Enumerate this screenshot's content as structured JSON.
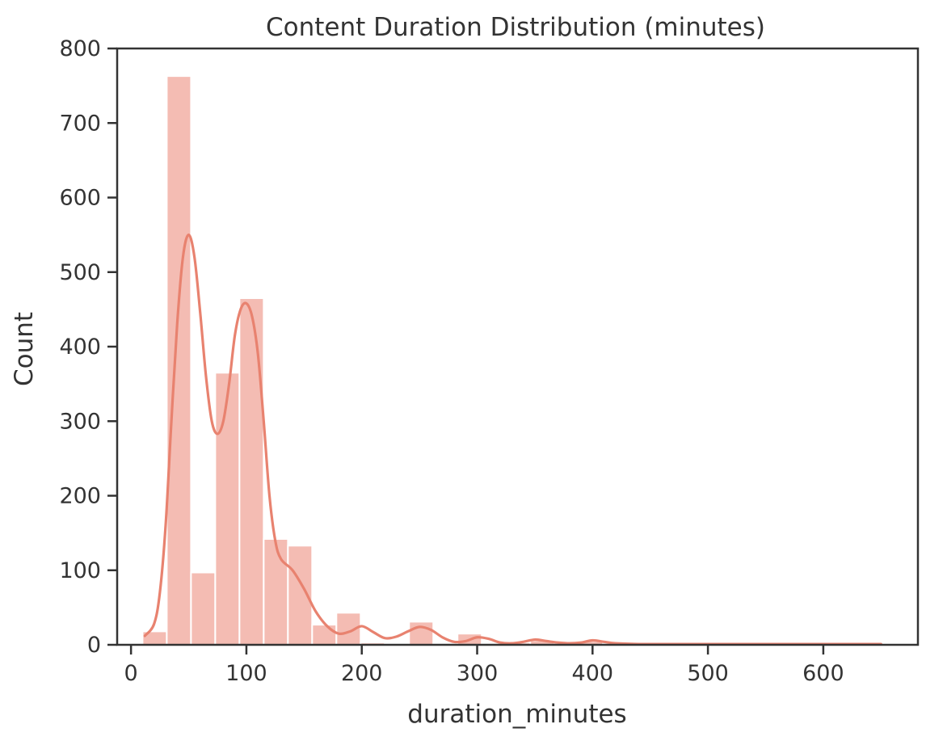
{
  "chart_data": {
    "type": "bar",
    "title": "Content Duration Distribution (minutes)",
    "xlabel": "duration_minutes",
    "ylabel": "Count",
    "xlim": [
      -12,
      682
    ],
    "ylim": [
      0,
      800
    ],
    "xticks": [
      0,
      100,
      200,
      300,
      400,
      500,
      600
    ],
    "yticks": [
      0,
      100,
      200,
      300,
      400,
      500,
      600,
      700,
      800
    ],
    "grid": false,
    "legend": "none",
    "bar_color": "#f4bcb3",
    "kde_color": "#e8826f",
    "bins": [
      {
        "x0": 10,
        "x1": 31,
        "count": 18
      },
      {
        "x0": 31,
        "x1": 52,
        "count": 763
      },
      {
        "x0": 52,
        "x1": 73,
        "count": 97
      },
      {
        "x0": 73,
        "x1": 94,
        "count": 365
      },
      {
        "x0": 94,
        "x1": 115,
        "count": 465
      },
      {
        "x0": 115,
        "x1": 136,
        "count": 142
      },
      {
        "x0": 136,
        "x1": 157,
        "count": 133
      },
      {
        "x0": 157,
        "x1": 178,
        "count": 27
      },
      {
        "x0": 178,
        "x1": 199,
        "count": 43
      },
      {
        "x0": 199,
        "x1": 220,
        "count": 3
      },
      {
        "x0": 220,
        "x1": 241,
        "count": 2
      },
      {
        "x0": 241,
        "x1": 262,
        "count": 31
      },
      {
        "x0": 262,
        "x1": 283,
        "count": 2
      },
      {
        "x0": 283,
        "x1": 304,
        "count": 15
      },
      {
        "x0": 304,
        "x1": 325,
        "count": 2
      },
      {
        "x0": 325,
        "x1": 346,
        "count": 3
      },
      {
        "x0": 346,
        "x1": 367,
        "count": 6
      },
      {
        "x0": 367,
        "x1": 388,
        "count": 2
      },
      {
        "x0": 388,
        "x1": 409,
        "count": 5
      },
      {
        "x0": 409,
        "x1": 430,
        "count": 1
      },
      {
        "x0": 430,
        "x1": 451,
        "count": 1
      },
      {
        "x0": 451,
        "x1": 472,
        "count": 1
      },
      {
        "x0": 472,
        "x1": 493,
        "count": 1
      },
      {
        "x0": 493,
        "x1": 514,
        "count": 1
      },
      {
        "x0": 514,
        "x1": 535,
        "count": 1
      },
      {
        "x0": 535,
        "x1": 556,
        "count": 1
      },
      {
        "x0": 556,
        "x1": 577,
        "count": 1
      },
      {
        "x0": 577,
        "x1": 598,
        "count": 1
      },
      {
        "x0": 598,
        "x1": 619,
        "count": 1
      },
      {
        "x0": 619,
        "x1": 640,
        "count": 1
      },
      {
        "x0": 640,
        "x1": 661,
        "count": 1
      }
    ],
    "kde": {
      "x": [
        12,
        20,
        25,
        30,
        35,
        40,
        45,
        50,
        55,
        60,
        65,
        70,
        75,
        80,
        85,
        90,
        95,
        100,
        105,
        110,
        115,
        120,
        125,
        130,
        140,
        150,
        160,
        170,
        180,
        190,
        200,
        210,
        220,
        230,
        240,
        250,
        260,
        270,
        280,
        290,
        300,
        310,
        320,
        330,
        340,
        350,
        360,
        370,
        380,
        390,
        400,
        410,
        420,
        440,
        460,
        500,
        550,
        600,
        650
      ],
      "y": [
        12,
        28,
        70,
        160,
        300,
        430,
        520,
        550,
        520,
        445,
        360,
        300,
        283,
        300,
        350,
        415,
        450,
        458,
        440,
        390,
        300,
        200,
        140,
        115,
        100,
        75,
        45,
        25,
        15,
        18,
        25,
        17,
        9,
        11,
        18,
        24,
        20,
        10,
        4,
        5,
        10,
        8,
        3,
        2,
        4,
        7,
        5,
        3,
        2,
        3,
        6,
        4,
        2,
        1,
        1,
        1,
        1,
        1,
        1
      ]
    }
  }
}
